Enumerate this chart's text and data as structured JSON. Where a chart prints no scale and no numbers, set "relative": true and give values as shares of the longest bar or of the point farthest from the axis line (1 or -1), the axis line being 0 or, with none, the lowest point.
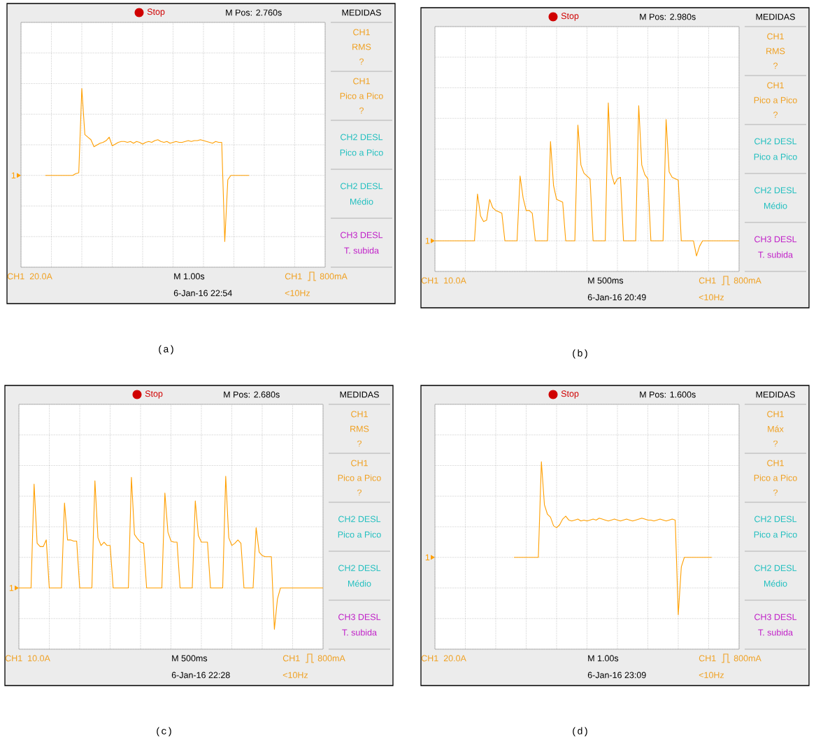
{
  "chart_data": [
    {
      "type": "line",
      "title": "(a)",
      "relative": true,
      "grid": true,
      "color": "#ff9f00",
      "categories": [
        null,
        null,
        null,
        null,
        null,
        null,
        null,
        null,
        null,
        null,
        null,
        null,
        null,
        null,
        null,
        null,
        null,
        null,
        null,
        null,
        null,
        null,
        null,
        null,
        null,
        null,
        null,
        null,
        null,
        null,
        null,
        null,
        null,
        null,
        null,
        null,
        null,
        null,
        null,
        null,
        null,
        null,
        null,
        null,
        null,
        null,
        null,
        null,
        null,
        null,
        null,
        null,
        null,
        null,
        null,
        null,
        null,
        null,
        null,
        null,
        null,
        null,
        null,
        null,
        null,
        null,
        null,
        null,
        null,
        null,
        null,
        null,
        null,
        null,
        null,
        null,
        null,
        null,
        null,
        null,
        null,
        null,
        null,
        null,
        null,
        null,
        null,
        null,
        null,
        null,
        null,
        null,
        null,
        null,
        null,
        null,
        null,
        null,
        null,
        null,
        null
      ],
      "values": [
        null,
        null,
        null,
        null,
        null,
        null,
        null,
        null,
        0,
        0,
        0,
        0,
        0,
        0,
        0,
        0,
        0,
        0,
        0.02,
        0.03,
        1.0,
        0.47,
        0.44,
        0.41,
        0.33,
        0.35,
        0.37,
        0.38,
        0.4,
        0.44,
        0.34,
        0.36,
        0.38,
        0.39,
        0.39,
        0.38,
        0.39,
        0.37,
        0.39,
        0.38,
        0.36,
        0.38,
        0.39,
        0.38,
        0.4,
        0.41,
        0.39,
        0.38,
        0.39,
        0.37,
        0.38,
        0.39,
        0.38,
        0.38,
        0.39,
        0.4,
        0.39,
        0.4,
        0.4,
        0.41,
        0.4,
        0.39,
        0.38,
        0.37,
        0.39,
        0.38,
        0.38,
        -0.76,
        -0.05,
        0,
        0,
        0,
        0,
        0,
        0,
        0,
        null,
        null,
        null,
        null,
        null,
        null,
        null,
        null,
        null,
        null,
        null,
        null,
        null,
        null,
        null,
        null,
        null,
        null,
        null,
        null,
        null,
        null,
        null,
        null,
        null
      ],
      "annotations": [
        "1",
        "Stop",
        "M Pos: 2.760s",
        "MEDIDAS",
        "CH1",
        "RMS",
        "?",
        "CH1",
        "Pico a Pico",
        "?",
        "CH2 DESL",
        "Pico a Pico",
        "CH2 DESL",
        "Médio",
        "CH3 DESL",
        "T. subida",
        "CH1",
        "20.0A",
        "M 1.00s",
        "6-Jan-16 22:54",
        "CH1",
        "800mA",
        "<10Hz"
      ]
    },
    {
      "type": "line",
      "title": "(b)",
      "relative": true,
      "grid": true,
      "color": "#ff9f00",
      "categories": [
        null,
        null,
        null,
        null,
        null,
        null,
        null,
        null,
        null,
        null,
        null,
        null,
        null,
        null,
        null,
        null,
        null,
        null,
        null,
        null,
        null,
        null,
        null,
        null,
        null,
        null,
        null,
        null,
        null,
        null,
        null,
        null,
        null,
        null,
        null,
        null,
        null,
        null,
        null,
        null,
        null,
        null,
        null,
        null,
        null,
        null,
        null,
        null,
        null,
        null,
        null,
        null,
        null,
        null,
        null,
        null,
        null,
        null,
        null,
        null,
        null,
        null,
        null,
        null,
        null,
        null,
        null,
        null,
        null,
        null,
        null,
        null,
        null,
        null,
        null,
        null,
        null,
        null,
        null,
        null,
        null,
        null,
        null,
        null,
        null,
        null,
        null,
        null,
        null,
        null,
        null,
        null,
        null,
        null,
        null,
        null,
        null,
        null,
        null,
        null,
        null
      ],
      "values": [
        0,
        0,
        0,
        0,
        0,
        0,
        0,
        0,
        0,
        0,
        0,
        0,
        0,
        0,
        0.34,
        0.18,
        0.14,
        0.15,
        0.3,
        0.24,
        0.22,
        0.21,
        0.2,
        0,
        0,
        0,
        0,
        0,
        0.47,
        0.31,
        0.22,
        0.22,
        0.2,
        0,
        0,
        0,
        0,
        0,
        0.72,
        0.4,
        0.3,
        0.29,
        0.28,
        0,
        0,
        0,
        0,
        0.84,
        0.55,
        0.49,
        0.47,
        0.45,
        0,
        0,
        0,
        0,
        0,
        1.0,
        0.49,
        0.41,
        0.45,
        0.46,
        0,
        0,
        0,
        0,
        0,
        0.98,
        0.55,
        0.48,
        0.45,
        0,
        0,
        0,
        0,
        0,
        0.88,
        0.5,
        0.46,
        0.45,
        0.44,
        0,
        0,
        0,
        0,
        0,
        -0.11,
        -0.04,
        0,
        0,
        0,
        0,
        0,
        0,
        0,
        0,
        0,
        0,
        0,
        0,
        0
      ],
      "annotations": [
        "1",
        "Stop",
        "M Pos: 2.980s",
        "MEDIDAS",
        "CH1",
        "RMS",
        "?",
        "CH1",
        "Pico a Pico",
        "?",
        "CH2 DESL",
        "Pico a Pico",
        "CH2 DESL",
        "Médio",
        "CH3 DESL",
        "T. subida",
        "CH1",
        "10.0A",
        "M 500ms",
        "6-Jan-16 20:49",
        "CH1",
        "800mA",
        "<10Hz"
      ]
    },
    {
      "type": "line",
      "title": "(c)",
      "relative": true,
      "grid": true,
      "color": "#ff9f00",
      "categories": [
        null,
        null,
        null,
        null,
        null,
        null,
        null,
        null,
        null,
        null,
        null,
        null,
        null,
        null,
        null,
        null,
        null,
        null,
        null,
        null,
        null,
        null,
        null,
        null,
        null,
        null,
        null,
        null,
        null,
        null,
        null,
        null,
        null,
        null,
        null,
        null,
        null,
        null,
        null,
        null,
        null,
        null,
        null,
        null,
        null,
        null,
        null,
        null,
        null,
        null,
        null,
        null,
        null,
        null,
        null,
        null,
        null,
        null,
        null,
        null,
        null,
        null,
        null,
        null,
        null,
        null,
        null,
        null,
        null,
        null,
        null,
        null,
        null,
        null,
        null,
        null,
        null,
        null,
        null,
        null,
        null,
        null,
        null,
        null,
        null,
        null,
        null,
        null,
        null,
        null,
        null,
        null,
        null,
        null,
        null,
        null,
        null,
        null,
        null,
        null,
        null
      ],
      "values": [
        0,
        0,
        0,
        0,
        0,
        0.93,
        0.4,
        0.37,
        0.37,
        0.43,
        0,
        0,
        0,
        0,
        0,
        0.76,
        0.43,
        0.43,
        0.42,
        0.42,
        0,
        0,
        0,
        0,
        0,
        0.96,
        0.45,
        0.38,
        0.41,
        0.38,
        0.38,
        0,
        0,
        0,
        0,
        0,
        0,
        0.99,
        0.48,
        0.44,
        0.41,
        0.4,
        0,
        0,
        0,
        0,
        0,
        0,
        0.85,
        0.5,
        0.42,
        0.41,
        0.41,
        0,
        0,
        0,
        0,
        0,
        0.78,
        0.47,
        0.41,
        0.41,
        0.41,
        0,
        0,
        0,
        0,
        0,
        1.0,
        0.45,
        0.38,
        0.4,
        0.43,
        0.4,
        0,
        0,
        0,
        0,
        0.54,
        0.32,
        0.29,
        0.28,
        0.28,
        0.28,
        -0.37,
        -0.1,
        0,
        0,
        0,
        0,
        0,
        0,
        0,
        0,
        0,
        0,
        0,
        0,
        0,
        0,
        0
      ],
      "annotations": [
        "1",
        "Stop",
        "M Pos: 2.680s",
        "MEDIDAS",
        "CH1",
        "RMS",
        "?",
        "CH1",
        "Pico a Pico",
        "?",
        "CH2 DESL",
        "Pico a Pico",
        "CH2 DESL",
        "Médio",
        "CH3 DESL",
        "T. subida",
        "CH1",
        "10.0A",
        "M 500ms",
        "6-Jan-16 22:28",
        "CH1",
        "800mA",
        "<10Hz"
      ]
    },
    {
      "type": "line",
      "title": "(d)",
      "relative": true,
      "grid": true,
      "color": "#ff9f00",
      "categories": [
        null,
        null,
        null,
        null,
        null,
        null,
        null,
        null,
        null,
        null,
        null,
        null,
        null,
        null,
        null,
        null,
        null,
        null,
        null,
        null,
        null,
        null,
        null,
        null,
        null,
        null,
        null,
        null,
        null,
        null,
        null,
        null,
        null,
        null,
        null,
        null,
        null,
        null,
        null,
        null,
        null,
        null,
        null,
        null,
        null,
        null,
        null,
        null,
        null,
        null,
        null,
        null,
        null,
        null,
        null,
        null,
        null,
        null,
        null,
        null,
        null,
        null,
        null,
        null,
        null,
        null,
        null,
        null,
        null,
        null,
        null,
        null,
        null,
        null,
        null,
        null,
        null,
        null,
        null,
        null,
        null,
        null,
        null,
        null,
        null,
        null,
        null,
        null,
        null,
        null,
        null,
        null,
        null,
        null,
        null,
        null,
        null,
        null,
        null,
        null,
        null
      ],
      "values": [
        null,
        null,
        null,
        null,
        null,
        null,
        null,
        null,
        null,
        null,
        null,
        null,
        null,
        null,
        null,
        null,
        null,
        null,
        null,
        null,
        null,
        null,
        null,
        null,
        null,
        null,
        0,
        0,
        0,
        0,
        0,
        0,
        0,
        0,
        0,
        1.0,
        0.55,
        0.45,
        0.42,
        0.33,
        0.31,
        0.34,
        0.4,
        0.43,
        0.39,
        0.38,
        0.39,
        0.4,
        0.38,
        0.39,
        0.38,
        0.39,
        0.4,
        0.39,
        0.41,
        0.4,
        0.39,
        0.38,
        0.39,
        0.4,
        0.39,
        0.38,
        0.39,
        0.4,
        0.39,
        0.38,
        0.39,
        0.4,
        0.41,
        0.4,
        0.39,
        0.39,
        0.38,
        0.39,
        0.4,
        0.39,
        0.38,
        0.39,
        0.4,
        0.39,
        -0.6,
        -0.1,
        0,
        0,
        0,
        0,
        0,
        0,
        0,
        0,
        0,
        0,
        null,
        null,
        null,
        null,
        null,
        null,
        null,
        null,
        null
      ],
      "annotations": [
        "1",
        "Stop",
        "M Pos: 1.600s",
        "MEDIDAS",
        "CH1",
        "Máx",
        "?",
        "CH1",
        "Pico a Pico",
        "?",
        "CH2 DESL",
        "Pico a Pico",
        "CH2 DESL",
        "Médio",
        "CH3 DESL",
        "T. subida",
        "CH1",
        "20.0A",
        "M 1.00s",
        "6-Jan-16 23:09",
        "CH1",
        "800mA",
        "<10Hz"
      ]
    }
  ]
}
